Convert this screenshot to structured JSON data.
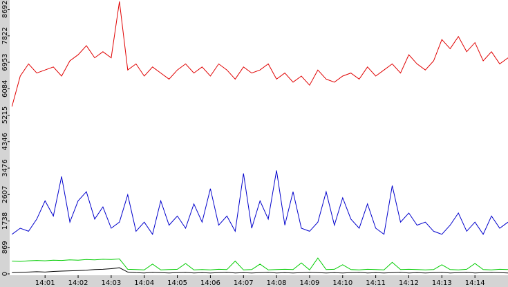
{
  "chart_data": {
    "type": "line",
    "xlim": [
      -0.07,
      15.0
    ],
    "xticks": [
      {
        "value": 1,
        "label": "14:01"
      },
      {
        "value": 2,
        "label": "14:02"
      },
      {
        "value": 3,
        "label": "14:03"
      },
      {
        "value": 4,
        "label": "14:04"
      },
      {
        "value": 5,
        "label": "14:05"
      },
      {
        "value": 6,
        "label": "14:06"
      },
      {
        "value": 7,
        "label": "14:07"
      },
      {
        "value": 8,
        "label": "14:08"
      },
      {
        "value": 9,
        "label": "14:09"
      },
      {
        "value": 10,
        "label": "14:10"
      },
      {
        "value": 11,
        "label": "14:11"
      },
      {
        "value": 12,
        "label": "14:12"
      },
      {
        "value": 13,
        "label": "14:13"
      },
      {
        "value": 14,
        "label": "14:14"
      }
    ],
    "ylim": [
      0,
      9000
    ],
    "yticks": [
      0,
      869,
      1738,
      2607,
      3476,
      4346,
      5215,
      6084,
      6953,
      7822,
      8692
    ],
    "x": [
      0,
      0.25,
      0.5,
      0.75,
      1,
      1.25,
      1.5,
      1.75,
      2,
      2.25,
      2.5,
      2.75,
      3,
      3.25,
      3.5,
      3.75,
      4,
      4.25,
      4.5,
      4.75,
      5,
      5.25,
      5.5,
      5.75,
      6,
      6.25,
      6.5,
      6.75,
      7,
      7.25,
      7.5,
      7.75,
      8,
      8.25,
      8.5,
      8.75,
      9,
      9.25,
      9.5,
      9.75,
      10,
      10.25,
      10.5,
      10.75,
      11,
      11.25,
      11.5,
      11.75,
      12,
      12.25,
      12.5,
      12.75,
      13,
      13.25,
      13.5,
      13.75,
      14,
      14.25,
      14.5,
      14.75,
      15
    ],
    "series": [
      {
        "color": "#e00000",
        "values": [
          5500,
          6500,
          6900,
          6600,
          6700,
          6800,
          6500,
          7000,
          7200,
          7500,
          7100,
          7300,
          7100,
          8950,
          6700,
          6900,
          6500,
          6800,
          6600,
          6400,
          6700,
          6900,
          6600,
          6800,
          6500,
          6900,
          6700,
          6400,
          6800,
          6600,
          6700,
          6900,
          6400,
          6600,
          6300,
          6500,
          6200,
          6700,
          6400,
          6300,
          6500,
          6600,
          6400,
          6800,
          6500,
          6700,
          6900,
          6600,
          7200,
          6900,
          6700,
          7000,
          7700,
          7400,
          7800,
          7300,
          7600,
          7000,
          7300,
          6900,
          7100
        ]
      },
      {
        "color": "#0000cc",
        "values": [
          1300,
          1500,
          1400,
          1800,
          2400,
          1900,
          3200,
          1700,
          2400,
          2700,
          1800,
          2200,
          1500,
          1700,
          2600,
          1400,
          1700,
          1300,
          2400,
          1600,
          1900,
          1500,
          2300,
          1700,
          2800,
          1600,
          1900,
          1400,
          3300,
          1500,
          2400,
          1800,
          3400,
          1600,
          2700,
          1500,
          1400,
          1700,
          2700,
          1600,
          2500,
          1800,
          1500,
          2300,
          1500,
          1300,
          2900,
          1700,
          2000,
          1600,
          1700,
          1400,
          1300,
          1600,
          2000,
          1400,
          1700,
          1300,
          1900,
          1500,
          1700
        ]
      },
      {
        "color": "#00cc00",
        "values": [
          420,
          410,
          430,
          440,
          430,
          450,
          440,
          460,
          450,
          470,
          460,
          480,
          470,
          490,
          150,
          140,
          130,
          320,
          130,
          140,
          150,
          340,
          130,
          140,
          130,
          150,
          140,
          420,
          130,
          140,
          320,
          130,
          140,
          150,
          140,
          360,
          130,
          520,
          140,
          150,
          300,
          140,
          130,
          150,
          140,
          130,
          380,
          140,
          150,
          140,
          130,
          140,
          300,
          140,
          130,
          150,
          340,
          140,
          130,
          150,
          140
        ]
      },
      {
        "color": "#000000",
        "values": [
          40,
          50,
          60,
          70,
          60,
          80,
          90,
          100,
          110,
          120,
          140,
          150,
          170,
          200,
          60,
          40,
          30,
          50,
          40,
          30,
          40,
          50,
          30,
          40,
          30,
          40,
          50,
          30,
          40,
          30,
          40,
          50,
          30,
          40,
          30,
          40,
          50,
          40,
          30,
          40,
          30,
          40,
          50,
          30,
          40,
          30,
          40,
          50,
          30,
          40,
          30,
          40,
          50,
          30,
          40,
          50,
          30,
          40,
          50,
          40,
          30
        ]
      }
    ]
  }
}
